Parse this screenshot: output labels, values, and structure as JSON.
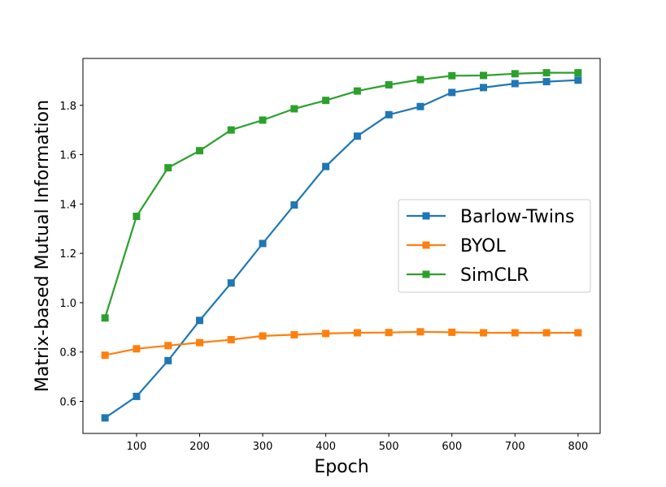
{
  "chart_data": {
    "type": "line",
    "title": "",
    "xlabel": "Epoch",
    "ylabel": "Matrix-based Mutual Information",
    "xlim": [
      15,
      835
    ],
    "ylim": [
      0.47,
      1.99
    ],
    "xticks": [
      100,
      200,
      300,
      400,
      500,
      600,
      700,
      800
    ],
    "yticks": [
      0.6,
      0.8,
      1.0,
      1.2,
      1.4,
      1.6,
      1.8
    ],
    "grid": false,
    "legend_position": "center-right",
    "x": [
      50,
      100,
      150,
      200,
      250,
      300,
      350,
      400,
      450,
      500,
      550,
      600,
      650,
      700,
      750,
      800
    ],
    "series": [
      {
        "name": "Barlow-Twins",
        "color": "#1f77b4",
        "marker": "square",
        "values": [
          0.533,
          0.62,
          0.765,
          0.928,
          1.08,
          1.24,
          1.396,
          1.552,
          1.675,
          1.762,
          1.795,
          1.852,
          1.872,
          1.888,
          1.896,
          1.902
        ]
      },
      {
        "name": "BYOL",
        "color": "#ff7f0e",
        "marker": "square",
        "values": [
          0.787,
          0.813,
          0.826,
          0.838,
          0.85,
          0.865,
          0.87,
          0.875,
          0.878,
          0.879,
          0.882,
          0.88,
          0.878,
          0.878,
          0.878,
          0.878
        ]
      },
      {
        "name": "SimCLR",
        "color": "#2ca02c",
        "marker": "square",
        "values": [
          0.938,
          1.35,
          1.547,
          1.616,
          1.7,
          1.74,
          1.786,
          1.82,
          1.858,
          1.883,
          1.904,
          1.92,
          1.921,
          1.928,
          1.932,
          1.932
        ]
      }
    ]
  }
}
